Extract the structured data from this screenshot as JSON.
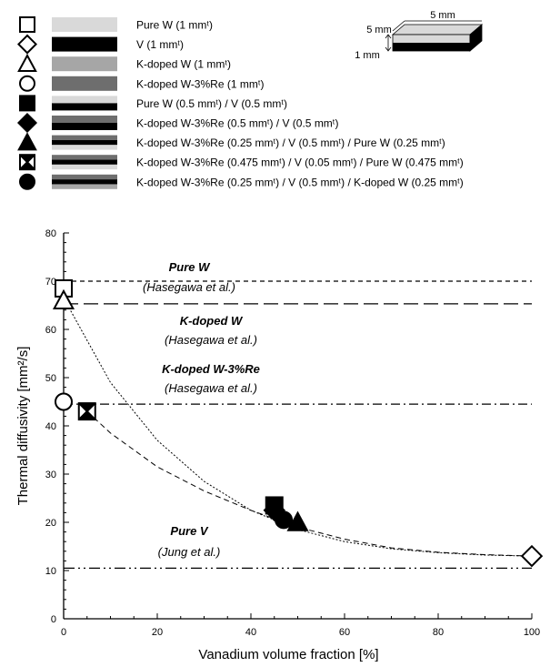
{
  "legend": {
    "entries": [
      {
        "marker": "open-square",
        "layers": [
          "#d9d9d9"
        ],
        "label": "Pure W (1 mmᵗ)"
      },
      {
        "marker": "open-diamond",
        "layers": [
          "#000000"
        ],
        "label": "V (1 mmᵗ)"
      },
      {
        "marker": "open-triangle",
        "layers": [
          "#a6a6a6"
        ],
        "label": "K-doped W (1 mmᵗ)"
      },
      {
        "marker": "open-circle",
        "layers": [
          "#6e6e6e"
        ],
        "label": "K-doped W-3%Re (1 mmᵗ)"
      },
      {
        "marker": "filled-square",
        "layers": [
          "#d9d9d9",
          "#000000"
        ],
        "label": "Pure W (0.5 mmᵗ) / V (0.5 mmᵗ)"
      },
      {
        "marker": "filled-diamond",
        "layers": [
          "#6e6e6e",
          "#000000"
        ],
        "label": "K-doped W-3%Re (0.5 mmᵗ) / V (0.5 mmᵗ)"
      },
      {
        "marker": "filled-triangle",
        "layers": [
          "#6e6e6e",
          "#000000",
          "#d9d9d9"
        ],
        "label": "K-doped W-3%Re (0.25 mmᵗ) / V (0.5 mmᵗ) / Pure W (0.25 mmᵗ)"
      },
      {
        "marker": "crossed-square",
        "layers": [
          "#6e6e6e",
          "#000000",
          "#d9d9d9"
        ],
        "label": "K-doped W-3%Re (0.475 mmᵗ) / V (0.05 mmᵗ) / Pure W (0.475 mmᵗ)"
      },
      {
        "marker": "filled-circle",
        "layers": [
          "#6e6e6e",
          "#000000",
          "#a6a6a6"
        ],
        "label": "K-doped W-3%Re (0.25 mmᵗ) / V (0.5 mmᵗ) / K-doped W (0.25 mmᵗ)"
      }
    ]
  },
  "sample_sketch": {
    "width_label": "5 mm",
    "depth_label": "5 mm",
    "thickness_label": "1 mm"
  },
  "chart_data": {
    "type": "scatter",
    "xlabel": "Vanadium volume fraction [%]",
    "ylabel": "Thermal diffusivity [mm²/s]",
    "xlim": [
      0,
      100
    ],
    "ylim": [
      0,
      80
    ],
    "x_ticks": [
      0,
      20,
      40,
      60,
      80,
      100
    ],
    "y_ticks": [
      0,
      10,
      20,
      30,
      40,
      50,
      60,
      70,
      80
    ],
    "grid": false,
    "reference_lines": [
      {
        "y": 70.0,
        "style": "dashed",
        "title": "Pure W",
        "source": "(Hasegawa et al.)"
      },
      {
        "y": 65.3,
        "style": "long-dashed",
        "title": "K-doped W",
        "source": "(Hasegawa et al.)"
      },
      {
        "y": 44.5,
        "style": "dash-dot",
        "title": "K-doped W-3%Re",
        "source": "(Hasegawa et al.)"
      },
      {
        "y": 10.5,
        "style": "dash-dot-dot",
        "title": "Pure V",
        "source": "(Jung et al.)"
      }
    ],
    "points": [
      {
        "marker": "open-square",
        "x": 0,
        "y": 68.5
      },
      {
        "marker": "open-diamond",
        "x": 100,
        "y": 13.0
      },
      {
        "marker": "open-triangle",
        "x": 0,
        "y": 66.0
      },
      {
        "marker": "open-circle",
        "x": 0,
        "y": 45.0
      },
      {
        "marker": "filled-square",
        "x": 45,
        "y": 23.5
      },
      {
        "marker": "filled-diamond",
        "x": 45,
        "y": 22.5
      },
      {
        "marker": "filled-triangle",
        "x": 50,
        "y": 20.0
      },
      {
        "marker": "crossed-square",
        "x": 5,
        "y": 43.0
      },
      {
        "marker": "filled-circle",
        "x": 47,
        "y": 20.5
      }
    ],
    "fit_curves": [
      {
        "style": "dotted",
        "x": [
          0,
          10,
          20,
          30,
          40,
          50,
          60,
          70,
          80,
          90,
          100
        ],
        "y": [
          66.5,
          49.0,
          37.0,
          28.5,
          22.5,
          18.5,
          16.0,
          14.5,
          13.7,
          13.2,
          13.0
        ]
      },
      {
        "style": "dashed",
        "x": [
          5,
          10,
          20,
          30,
          40,
          50,
          60,
          70,
          80,
          90,
          100
        ],
        "y": [
          43.0,
          38.5,
          31.5,
          26.5,
          22.5,
          19.0,
          16.5,
          14.7,
          13.8,
          13.3,
          13.0
        ]
      }
    ]
  }
}
